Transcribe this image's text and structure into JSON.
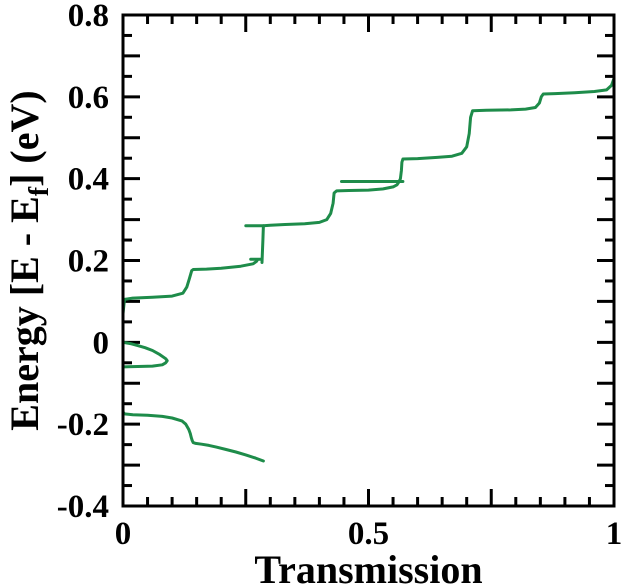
{
  "chart_data": {
    "type": "line",
    "title": "",
    "xlabel": "Transmission",
    "ylabel": {
      "prefix": "Energy [E - E",
      "subscript": "f",
      "suffix": "] (eV)"
    },
    "xlim": [
      0,
      1
    ],
    "ylim": [
      -0.4,
      0.8
    ],
    "x_ticks": [
      {
        "value": 0,
        "label": "0"
      },
      {
        "value": 0.5,
        "label": "0.5"
      },
      {
        "value": 1,
        "label": "1"
      }
    ],
    "y_ticks": [
      {
        "value": -0.4,
        "label": "-0.4"
      },
      {
        "value": -0.2,
        "label": "-0.2"
      },
      {
        "value": 0,
        "label": "0"
      },
      {
        "value": 0.2,
        "label": "0.2"
      },
      {
        "value": 0.4,
        "label": "0.4"
      },
      {
        "value": 0.6,
        "label": "0.6"
      },
      {
        "value": 0.8,
        "label": "0.8"
      }
    ],
    "grid": false,
    "series": [
      {
        "color": "#1e8c4a",
        "segments": [
          [
            [
              0.286,
              -0.29
            ],
            [
              0.27,
              -0.283
            ],
            [
              0.25,
              -0.275
            ],
            [
              0.23,
              -0.268
            ],
            [
              0.21,
              -0.262
            ],
            [
              0.19,
              -0.256
            ],
            [
              0.175,
              -0.252
            ],
            [
              0.16,
              -0.249
            ],
            [
              0.148,
              -0.247
            ],
            [
              0.143,
              -0.245
            ],
            [
              0.141,
              -0.24
            ],
            [
              0.139,
              -0.232
            ],
            [
              0.137,
              -0.223
            ],
            [
              0.134,
              -0.213
            ],
            [
              0.128,
              -0.2
            ],
            [
              0.12,
              -0.192
            ],
            [
              0.1,
              -0.185
            ],
            [
              0.08,
              -0.181
            ],
            [
              0.05,
              -0.178
            ],
            [
              0.02,
              -0.177
            ],
            [
              0.003,
              -0.175
            ],
            [
              0.0,
              -0.17
            ],
            [
              0.0,
              -0.09
            ],
            [
              0.0,
              -0.06
            ]
          ],
          [
            [
              0.0,
              -0.06
            ],
            [
              0.03,
              -0.059
            ],
            [
              0.06,
              -0.058
            ],
            [
              0.08,
              -0.055
            ],
            [
              0.087,
              -0.05
            ],
            [
              0.09,
              -0.045
            ],
            [
              0.087,
              -0.04
            ],
            [
              0.075,
              -0.03
            ],
            [
              0.06,
              -0.02
            ],
            [
              0.045,
              -0.013
            ],
            [
              0.03,
              -0.008
            ],
            [
              0.015,
              -0.003
            ],
            [
              0.0,
              0.0
            ]
          ],
          [
            [
              0.0,
              0.0
            ],
            [
              0.0,
              0.07
            ],
            [
              0.003,
              0.105
            ],
            [
              0.02,
              0.108
            ],
            [
              0.06,
              0.11
            ],
            [
              0.1,
              0.113
            ],
            [
              0.122,
              0.12
            ],
            [
              0.13,
              0.135
            ],
            [
              0.135,
              0.155
            ],
            [
              0.14,
              0.175
            ],
            [
              0.143,
              0.178
            ],
            [
              0.17,
              0.179
            ],
            [
              0.2,
              0.181
            ],
            [
              0.24,
              0.186
            ],
            [
              0.265,
              0.192
            ],
            [
              0.272,
              0.198
            ],
            [
              0.274,
              0.202
            ]
          ],
          [
            [
              0.26,
              0.203
            ],
            [
              0.283,
              0.203
            ]
          ],
          [
            [
              0.283,
              0.195
            ],
            [
              0.284,
              0.22
            ],
            [
              0.285,
              0.25
            ],
            [
              0.286,
              0.285
            ]
          ],
          [
            [
              0.25,
              0.285
            ],
            [
              0.286,
              0.285
            ],
            [
              0.3,
              0.286
            ],
            [
              0.33,
              0.288
            ],
            [
              0.37,
              0.29
            ],
            [
              0.4,
              0.293
            ],
            [
              0.415,
              0.3
            ],
            [
              0.423,
              0.315
            ],
            [
              0.428,
              0.34
            ],
            [
              0.43,
              0.365
            ],
            [
              0.435,
              0.37
            ],
            [
              0.46,
              0.371
            ],
            [
              0.5,
              0.372
            ],
            [
              0.53,
              0.375
            ],
            [
              0.55,
              0.38
            ],
            [
              0.558,
              0.385
            ],
            [
              0.562,
              0.392
            ],
            [
              0.565,
              0.4
            ],
            [
              0.567,
              0.42
            ],
            [
              0.568,
              0.44
            ],
            [
              0.57,
              0.448
            ],
            [
              0.6,
              0.449
            ],
            [
              0.64,
              0.452
            ],
            [
              0.67,
              0.455
            ],
            [
              0.69,
              0.462
            ],
            [
              0.7,
              0.478
            ],
            [
              0.705,
              0.51
            ],
            [
              0.708,
              0.55
            ],
            [
              0.712,
              0.566
            ],
            [
              0.74,
              0.567
            ],
            [
              0.79,
              0.568
            ],
            [
              0.82,
              0.57
            ],
            [
              0.84,
              0.574
            ],
            [
              0.848,
              0.585
            ],
            [
              0.852,
              0.6
            ],
            [
              0.856,
              0.607
            ],
            [
              0.88,
              0.608
            ],
            [
              0.92,
              0.61
            ],
            [
              0.96,
              0.613
            ],
            [
              0.985,
              0.617
            ],
            [
              0.995,
              0.628
            ],
            [
              1.0,
              0.645
            ]
          ],
          [
            [
              0.445,
              0.393
            ],
            [
              0.57,
              0.393
            ]
          ]
        ]
      }
    ]
  }
}
